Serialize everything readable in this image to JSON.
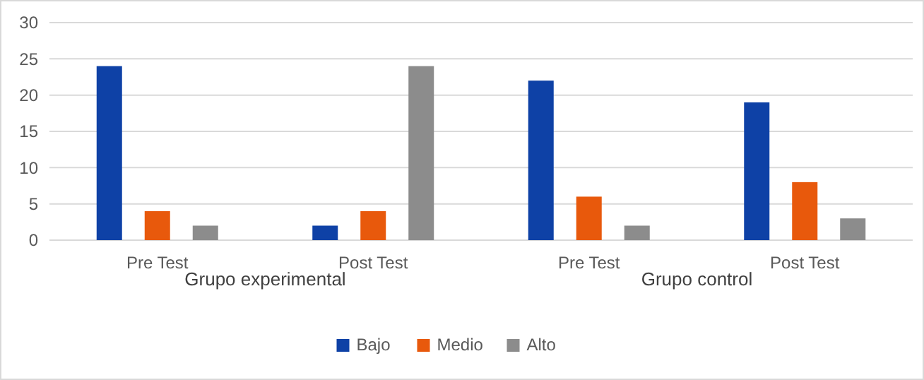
{
  "chart_data": {
    "type": "bar",
    "categories": [
      "Pre Test",
      "Post Test",
      "Pre Test",
      "Post Test"
    ],
    "series": [
      {
        "name": "Bajo",
        "color": "#0e41a6",
        "values": [
          24,
          2,
          22,
          19
        ]
      },
      {
        "name": "Medio",
        "color": "#e8590c",
        "values": [
          4,
          4,
          6,
          8
        ]
      },
      {
        "name": "Alto",
        "color": "#8c8c8c",
        "values": [
          2,
          24,
          2,
          3
        ]
      }
    ],
    "annotations": [
      "Grupo experimental",
      "Grupo control"
    ],
    "ylim": [
      0,
      30
    ],
    "yticks": [
      0,
      5,
      10,
      15,
      20,
      25,
      30
    ],
    "grid": "y",
    "legend": "bottom"
  }
}
